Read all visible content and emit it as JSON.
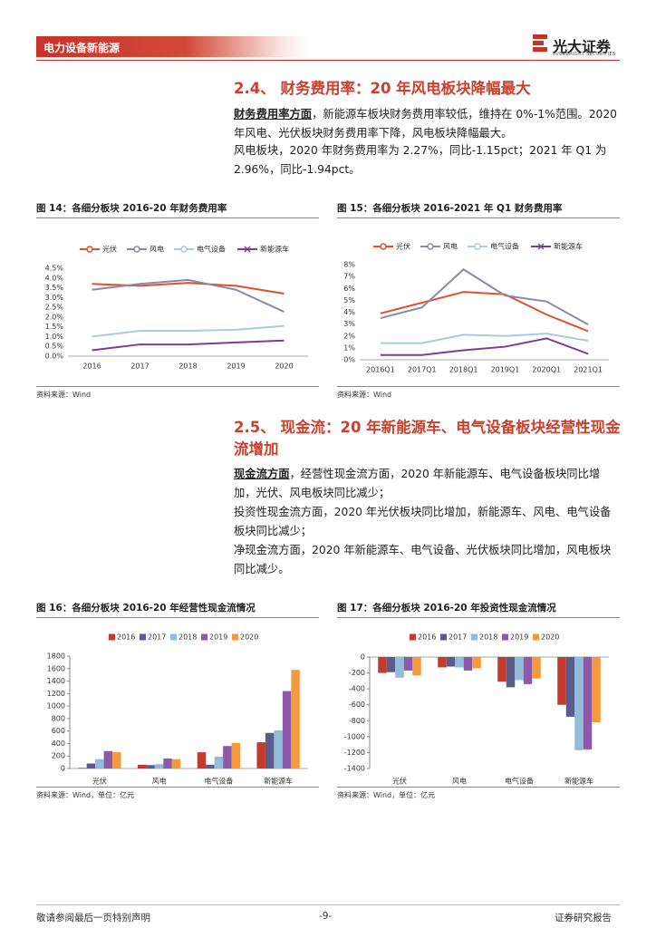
{
  "header": {
    "section": "电力设备新能源",
    "logo_cn": "光大证券",
    "logo_en": "EVERBRIGHT SECURITIES"
  },
  "sections": [
    {
      "heading": "2.4、 财务费用率：20 年风电板块降幅最大",
      "paragraphs": [
        {
          "lead": "财务费用率方面",
          "text": "，新能源车板块财务费用率较低，维持在 0%-1%范围。2020 年风电、光伏板块财务费用率下降，风电板块降幅最大。"
        },
        {
          "text": "风电板块，2020 年财务费用率为 2.27%，同比-1.15pct；2021 年 Q1 为 2.96%，同比-1.94pct。"
        }
      ]
    },
    {
      "heading": "2.5、 现金流：20 年新能源车、电气设备板块经营性现金流增加",
      "paragraphs": [
        {
          "lead": "现金流方面",
          "text": "，经营性现金流方面，2020 年新能源车、电气设备板块同比增加，光伏、风电板块同比减少；"
        },
        {
          "text": "投资性现金流方面，2020 年光伏板块同比增加，新能源车、风电、电气设备板块同比减少；"
        },
        {
          "text": "净现金流方面，2020 年新能源车、电气设备、光伏板块同比增加，风电板块同比减少。"
        }
      ]
    }
  ],
  "chart_data": [
    {
      "type": "line",
      "title": "图 14：各细分板块 2016-20 年财务费用率",
      "source": "资料来源：Wind",
      "categories": [
        "2016",
        "2017",
        "2018",
        "2019",
        "2020"
      ],
      "series": [
        {
          "name": "光伏",
          "color": "#e0502c",
          "marker": "circle",
          "values": [
            3.7,
            3.6,
            3.75,
            3.6,
            3.2
          ]
        },
        {
          "name": "风电",
          "color": "#8a89a8",
          "marker": "circle",
          "values": [
            3.4,
            3.7,
            3.9,
            3.4,
            2.27
          ]
        },
        {
          "name": "电气设备",
          "color": "#a8cbe2",
          "marker": "circle",
          "values": [
            1.0,
            1.3,
            1.3,
            1.35,
            1.55
          ]
        },
        {
          "name": "新能源车",
          "color": "#7a3f8e",
          "marker": "x",
          "values": [
            0.3,
            0.6,
            0.6,
            0.7,
            0.8
          ]
        }
      ],
      "ylim": [
        0,
        4.5
      ],
      "yticks": [
        {
          "value": 0,
          "label": "0.0%"
        },
        {
          "value": 0.5,
          "label": "0.5%"
        },
        {
          "value": 1,
          "label": "1.0%"
        },
        {
          "value": 1.5,
          "label": "1.5%"
        },
        {
          "value": 2,
          "label": "2.0%"
        },
        {
          "value": 2.5,
          "label": "2.5%"
        },
        {
          "value": 3,
          "label": "3.0%"
        },
        {
          "value": 3.5,
          "label": "3.5%"
        },
        {
          "value": 4,
          "label": "4.0%"
        },
        {
          "value": 4.5,
          "label": "4.5%"
        }
      ]
    },
    {
      "type": "line",
      "title": "图 15：各细分板块 2016-2021 年 Q1 财务费用率",
      "source": "资料来源：Wind",
      "categories": [
        "2016Q1",
        "2017Q1",
        "2018Q1",
        "2019Q1",
        "2020Q1",
        "2021Q1"
      ],
      "series": [
        {
          "name": "光伏",
          "color": "#e0502c",
          "marker": "circle",
          "values": [
            3.9,
            4.8,
            5.7,
            5.5,
            3.8,
            2.4
          ]
        },
        {
          "name": "风电",
          "color": "#8a89a8",
          "marker": "circle",
          "values": [
            3.5,
            4.4,
            7.6,
            5.4,
            4.9,
            2.96
          ]
        },
        {
          "name": "电气设备",
          "color": "#a8cbe2",
          "marker": "circle",
          "values": [
            1.4,
            1.4,
            2.1,
            2.0,
            2.2,
            1.6
          ]
        },
        {
          "name": "新能源车",
          "color": "#7a3f8e",
          "marker": "x",
          "values": [
            0.4,
            0.4,
            0.8,
            1.1,
            1.8,
            0.5
          ]
        }
      ],
      "ylim": [
        0,
        8
      ],
      "yticks": [
        {
          "value": 0,
          "label": "0%"
        },
        {
          "value": 1,
          "label": "1%"
        },
        {
          "value": 2,
          "label": "2%"
        },
        {
          "value": 3,
          "label": "3%"
        },
        {
          "value": 4,
          "label": "4%"
        },
        {
          "value": 5,
          "label": "5%"
        },
        {
          "value": 6,
          "label": "6%"
        },
        {
          "value": 7,
          "label": "7%"
        },
        {
          "value": 8,
          "label": "8%"
        }
      ]
    },
    {
      "type": "bar",
      "title": "图 16：各细分板块 2016-20 年经营性现金流情况",
      "source": "资料来源：Wind，单位：亿元",
      "categories": [
        "光伏",
        "风电",
        "电气设备",
        "新能源车"
      ],
      "series": [
        {
          "name": "2016",
          "color": "#c43a2c",
          "values": [
            10,
            60,
            260,
            420
          ]
        },
        {
          "name": "2017",
          "color": "#5c5c8c",
          "values": [
            80,
            55,
            60,
            570
          ]
        },
        {
          "name": "2018",
          "color": "#92bcdc",
          "values": [
            150,
            70,
            190,
            610
          ]
        },
        {
          "name": "2019",
          "color": "#8c5aa8",
          "values": [
            280,
            160,
            360,
            1240
          ]
        },
        {
          "name": "2020",
          "color": "#f49a3c",
          "values": [
            260,
            150,
            410,
            1580
          ]
        }
      ],
      "ylim": [
        0,
        1800
      ],
      "yticks": [
        0,
        200,
        400,
        600,
        800,
        1000,
        1200,
        1400,
        1600,
        1800
      ]
    },
    {
      "type": "bar",
      "title": "图 17：各细分板块 2016-20 年投资性现金流情况",
      "source": "资料来源：Wind，单位：亿元",
      "categories": [
        "光伏",
        "风电",
        "电气设备",
        "新能源车"
      ],
      "series": [
        {
          "name": "2016",
          "color": "#c43a2c",
          "values": [
            -200,
            -130,
            -310,
            -600
          ]
        },
        {
          "name": "2017",
          "color": "#5c5c8c",
          "values": [
            -190,
            -120,
            -380,
            -750
          ]
        },
        {
          "name": "2018",
          "color": "#92bcdc",
          "values": [
            -260,
            -130,
            -290,
            -1170
          ]
        },
        {
          "name": "2019",
          "color": "#8c5aa8",
          "values": [
            -170,
            -170,
            -340,
            -1160
          ]
        },
        {
          "name": "2020",
          "color": "#f49a3c",
          "values": [
            -230,
            -140,
            -270,
            -820
          ]
        }
      ],
      "ylim": [
        -1400,
        0
      ],
      "yticks": [
        0,
        -200,
        -400,
        -600,
        -800,
        -1000,
        -1200,
        -1400
      ]
    }
  ],
  "footer": {
    "disclaimer": "敬请参阅最后一页特别声明",
    "page": "-9-",
    "report_type": "证券研究报告"
  }
}
